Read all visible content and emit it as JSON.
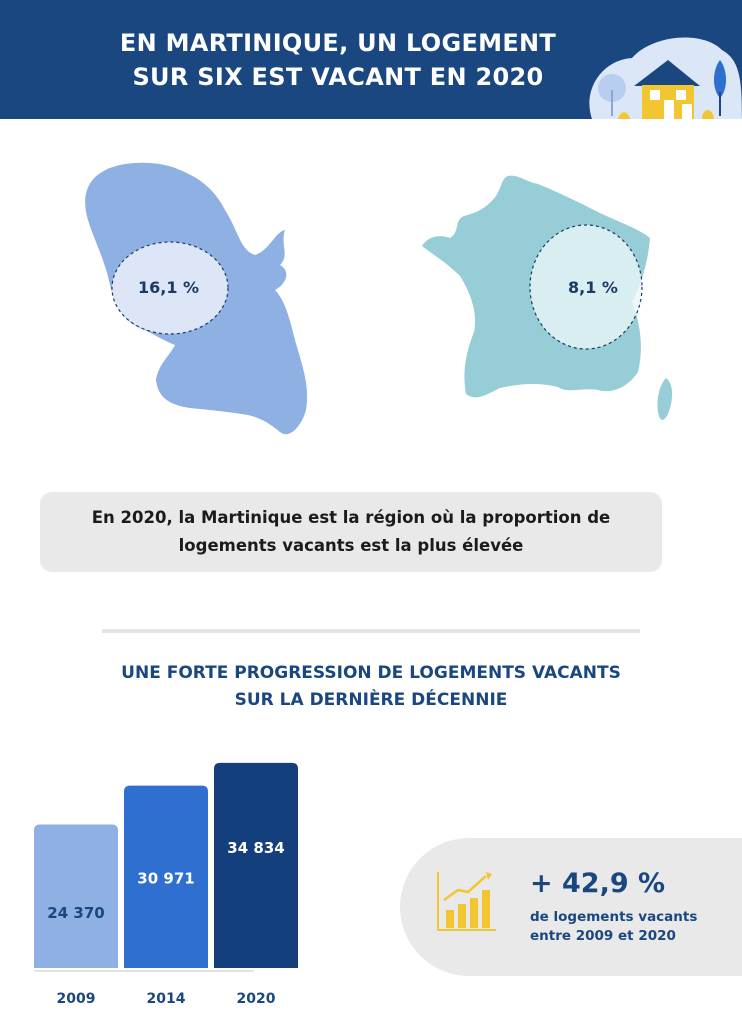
{
  "header": {
    "title_line1": "EN MARTINIQUE, UN LOGEMENT",
    "title_line2": "SUR SIX EST VACANT EN 2020"
  },
  "maps": {
    "martinique_pct": "16,1 %",
    "france_pct": "8,1 %",
    "martinique_color": "#8fb0e3",
    "france_color": "#96cdd6"
  },
  "info": {
    "line1": "En 2020, la Martinique est la région où la proportion de",
    "line2": "logements vacants est la plus élevée"
  },
  "section": {
    "title_line1": "UNE FORTE PROGRESSION DE LOGEMENTS VACANTS",
    "title_line2": "SUR LA DERNIÈRE DÉCENNIE"
  },
  "chart_data": {
    "type": "bar",
    "categories": [
      "2009",
      "2014",
      "2020"
    ],
    "values": [
      24370,
      30971,
      34834
    ],
    "value_labels": [
      "24 370",
      "30 971",
      "34 834"
    ],
    "colors": [
      "#8fb0e3",
      "#2e6fd0",
      "#133f7d"
    ],
    "ylim": [
      0,
      36000
    ]
  },
  "callout": {
    "big": "+ 42,9 %",
    "line1": "de logements vacants",
    "line2": "entre 2009 et 2020"
  }
}
